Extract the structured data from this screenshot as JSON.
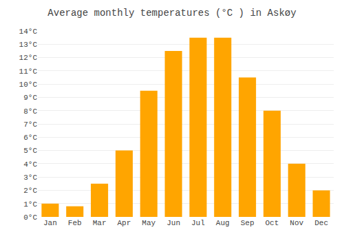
{
  "chart_data": {
    "type": "bar",
    "title": "Average monthly temperatures (°C ) in Askøy",
    "categories": [
      "Jan",
      "Feb",
      "Mar",
      "Apr",
      "May",
      "Jun",
      "Jul",
      "Aug",
      "Sep",
      "Oct",
      "Nov",
      "Dec"
    ],
    "values": [
      1.0,
      0.8,
      2.5,
      5.0,
      9.5,
      12.5,
      13.5,
      13.5,
      10.5,
      8.0,
      4.0,
      2.0
    ],
    "color": "#FFA500",
    "ylim": [
      0,
      14
    ],
    "yticks": [
      {
        "value": 0,
        "label": "0°C"
      },
      {
        "value": 1,
        "label": "1°C"
      },
      {
        "value": 2,
        "label": "2°C"
      },
      {
        "value": 3,
        "label": "3°C"
      },
      {
        "value": 4,
        "label": "4°C"
      },
      {
        "value": 5,
        "label": "5°C"
      },
      {
        "value": 6,
        "label": "6°C"
      },
      {
        "value": 7,
        "label": "7°C"
      },
      {
        "value": 8,
        "label": "8°C"
      },
      {
        "value": 9,
        "label": "9°C"
      },
      {
        "value": 10,
        "label": "10°C"
      },
      {
        "value": 11,
        "label": "11°C"
      },
      {
        "value": 12,
        "label": "12°C"
      },
      {
        "value": 13,
        "label": "13°C"
      },
      {
        "value": 14,
        "label": "14°C"
      }
    ],
    "grid": true
  }
}
